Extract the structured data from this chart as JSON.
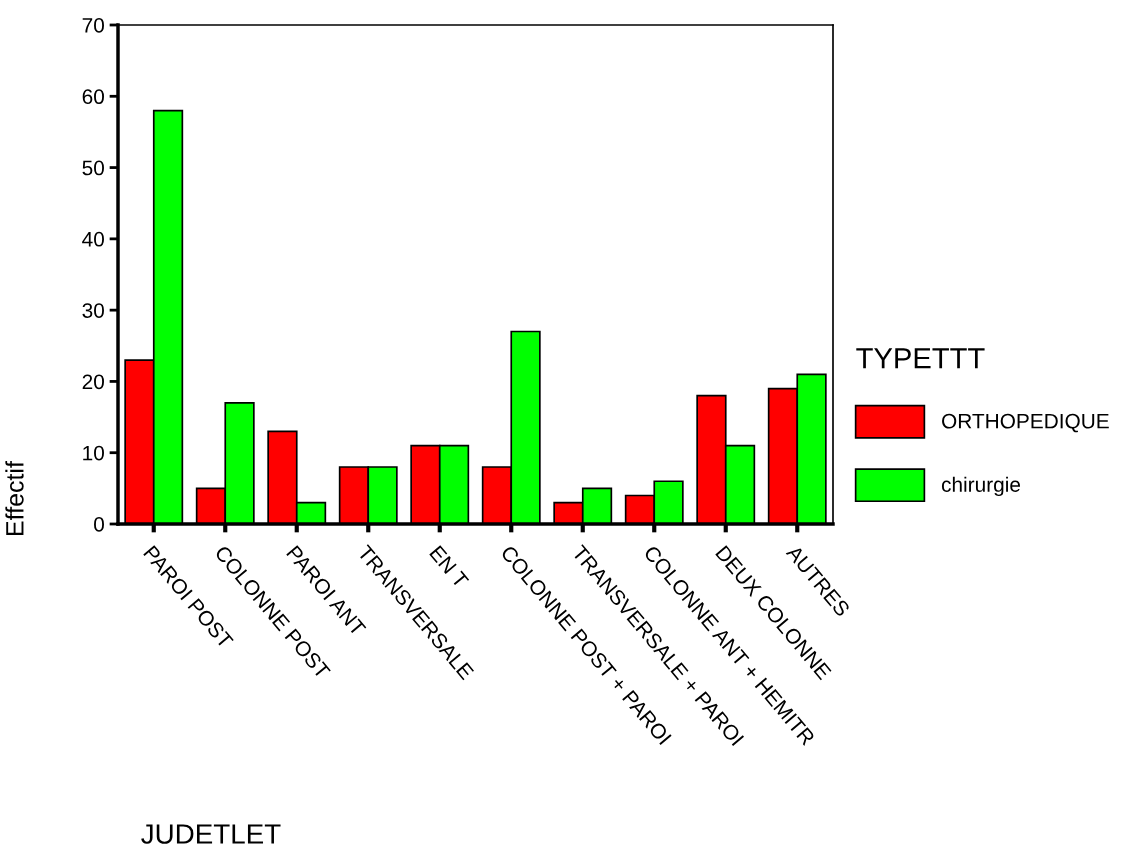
{
  "chart_data": {
    "type": "bar",
    "xlabel": "JUDETLET",
    "ylabel": "Effectif",
    "legend_title": "TYPETTT",
    "categories": [
      "PAROI POST",
      "COLONNE POST",
      "PAROI ANT",
      "TRANSVERSALE",
      "EN T",
      "COLONNE POST + PAROI",
      "TRANSVERSALE + PAROI",
      "COLONNE ANT + HEMITR",
      "DEUX COLONNE",
      "AUTRES"
    ],
    "series": [
      {
        "name": "ORTHOPEDIQUE",
        "color": "#ff0000",
        "values": [
          23,
          5,
          13,
          8,
          11,
          8,
          3,
          4,
          18,
          19
        ]
      },
      {
        "name": "chirurgie",
        "color": "#00ff00",
        "values": [
          58,
          17,
          3,
          8,
          11,
          27,
          5,
          6,
          11,
          21
        ]
      }
    ],
    "ylim": [
      0,
      70
    ],
    "yticks": [
      0,
      10,
      20,
      30,
      40,
      50,
      60,
      70
    ],
    "grid": false,
    "legend": "right"
  }
}
